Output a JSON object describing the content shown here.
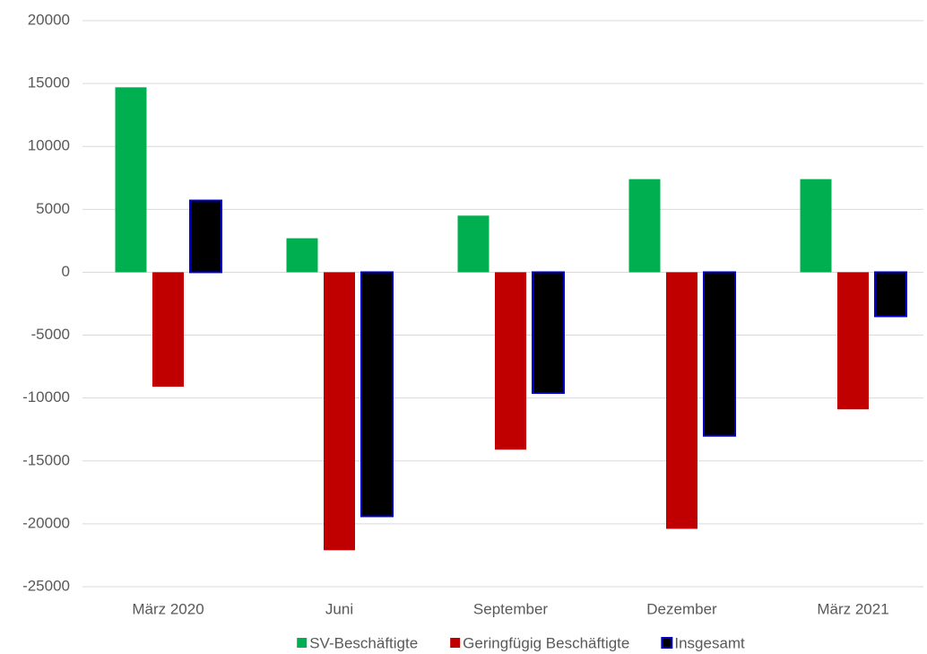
{
  "chart_data": {
    "type": "bar",
    "categories": [
      "März 2020",
      "Juni",
      "September",
      "Dezember",
      "März 2021"
    ],
    "series": [
      {
        "name": "SV-Beschäftigte",
        "color": "#00b050",
        "values": [
          14700,
          2700,
          4500,
          7400,
          7400
        ]
      },
      {
        "name": "Geringfügig Beschäftigte",
        "color": "#c00000",
        "values": [
          -9100,
          -22100,
          -14100,
          -20400,
          -10900
        ]
      },
      {
        "name": "Insgesamt",
        "color": "#000000",
        "edgecolor": "#0000cc",
        "values": [
          5700,
          -19400,
          -9600,
          -13000,
          -3500
        ]
      }
    ],
    "ylim": [
      -25000,
      20000
    ],
    "yticks": [
      -25000,
      -20000,
      -15000,
      -10000,
      -5000,
      0,
      5000,
      10000,
      15000,
      20000
    ],
    "grid": true,
    "legend": "bottom"
  }
}
